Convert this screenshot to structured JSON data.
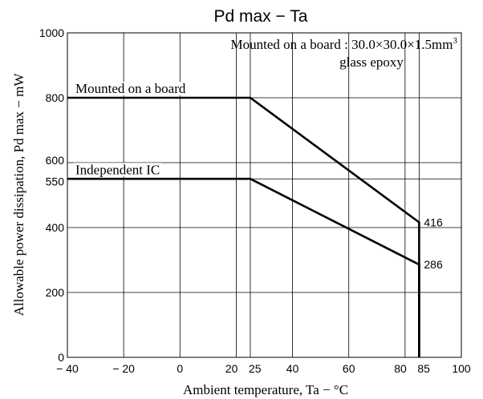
{
  "chart_data": {
    "type": "line",
    "title": "Pd max  −  Ta",
    "xlabel": "Ambient temperature,  Ta  −  °C",
    "ylabel": "Allowable power dissipation,  Pd max  −  mW",
    "xlim": [
      -40,
      100
    ],
    "ylim": [
      0,
      1000
    ],
    "x_ticks": [
      {
        "value": -40,
        "label": "− 40"
      },
      {
        "value": -20,
        "label": "− 20"
      },
      {
        "value": 0,
        "label": "0"
      },
      {
        "value": 20,
        "label": "20"
      },
      {
        "value": 25,
        "label": "25"
      },
      {
        "value": 40,
        "label": "40"
      },
      {
        "value": 60,
        "label": "60"
      },
      {
        "value": 80,
        "label": "80"
      },
      {
        "value": 85,
        "label": "85"
      },
      {
        "value": 100,
        "label": "100"
      }
    ],
    "y_ticks": [
      {
        "value": 0,
        "label": "0"
      },
      {
        "value": 200,
        "label": "200"
      },
      {
        "value": 400,
        "label": "400"
      },
      {
        "value": 550,
        "label": "550"
      },
      {
        "value": 600,
        "label": "600"
      },
      {
        "value": 800,
        "label": "800"
      },
      {
        "value": 1000,
        "label": "1000"
      }
    ],
    "grid": true,
    "series": [
      {
        "name": "Mounted on a board",
        "x": [
          -40,
          25,
          85,
          85
        ],
        "y": [
          800,
          800,
          416,
          0
        ],
        "end_label": "416"
      },
      {
        "name": "Independent IC",
        "x": [
          -40,
          25,
          85,
          85
        ],
        "y": [
          550,
          550,
          286,
          0
        ],
        "end_label": "286"
      }
    ],
    "annotations": [
      {
        "text_before": "Mounted on a board : 30.0×30.0×1.5mm",
        "superscript": "3"
      },
      {
        "text": "glass epoxy"
      }
    ]
  }
}
